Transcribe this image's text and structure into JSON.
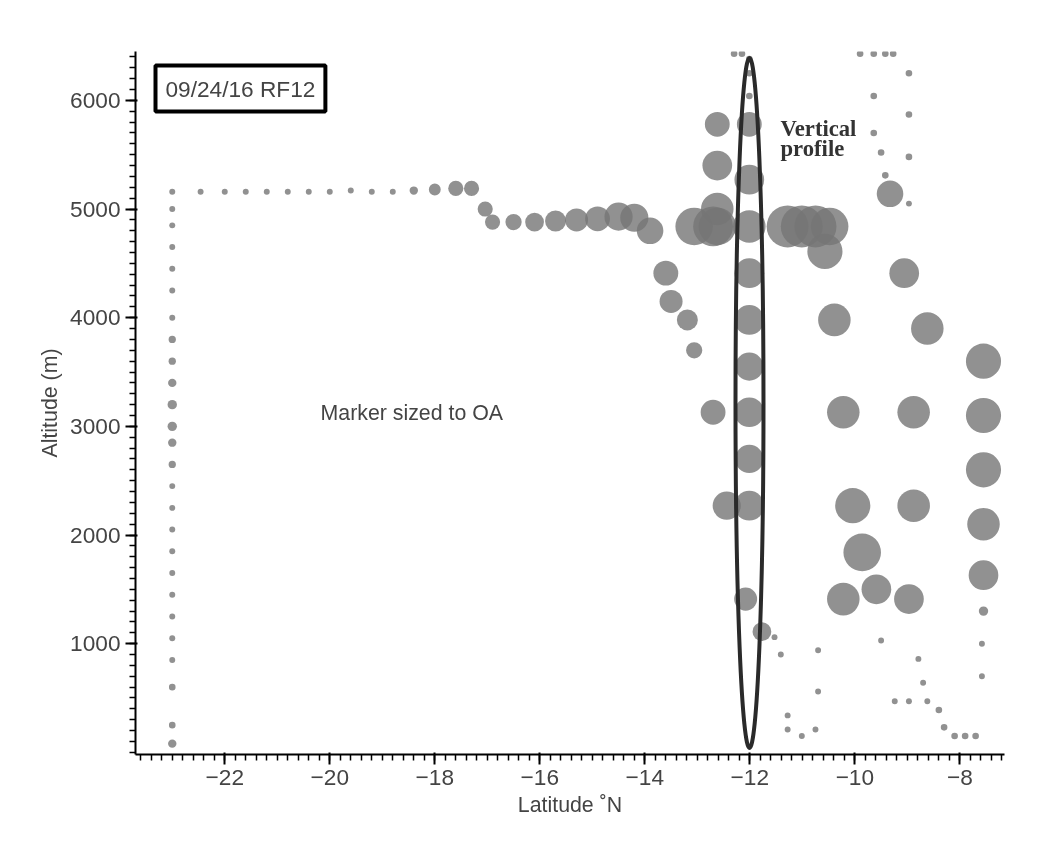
{
  "chart_data": {
    "type": "bubble",
    "title": "09/24/16 RF12",
    "xlabel": "Latitude ˚N",
    "ylabel": "Altitude (m)",
    "xlim": [
      -23.7,
      -7.15
    ],
    "ylim": [
      -20,
      6450
    ],
    "xticks": [
      -22,
      -20,
      -18,
      -16,
      -14,
      -12,
      -10,
      -8
    ],
    "yticks": [
      1000,
      2000,
      3000,
      4000,
      5000,
      6000
    ],
    "grid": false,
    "marker": "circle",
    "annotations": [
      "Marker sized to OA",
      "Vertical profile"
    ],
    "series": [
      {
        "color": "#757575",
        "x": [
          -23.0,
          -23.0,
          -23.0,
          -23.0,
          -23.0,
          -23.0,
          -23.0,
          -23.0,
          -23.0,
          -23.0,
          -23.0,
          -23.0,
          -23.0,
          -23.0,
          -23.0,
          -23.0,
          -23.0,
          -23.0,
          -23.0,
          -23.0,
          -23.0,
          -23.0,
          -23.0,
          -23.0,
          -23.0,
          -23.0,
          -22.46,
          -22.0,
          -21.6,
          -21.2,
          -20.8,
          -20.4,
          -20.0,
          -19.6,
          -19.2,
          -18.8,
          -18.4,
          -18.0,
          -17.6,
          -17.3,
          -17.04,
          -16.9,
          -16.5,
          -16.1,
          -15.7,
          -15.3,
          -14.9,
          -14.5,
          -14.2,
          -13.9,
          -13.6,
          -13.5,
          -13.19,
          -13.06,
          -12.7,
          -12.44,
          -12.62,
          -12.62,
          -12.62,
          -12.62,
          -12.3,
          -12.15,
          -12.01,
          -12.01,
          -12.01,
          -12.01,
          -12.01,
          -12.01,
          -12.01,
          -12.01,
          -12.01,
          -12.01,
          -12.01,
          -12.01,
          -12.08,
          -11.77,
          -11.53,
          -13.06,
          -12.7,
          -11.28,
          -11.01,
          -10.75,
          -10.48,
          -10.57,
          -10.39,
          -10.22,
          -10.04,
          -9.86,
          -10.22,
          -9.59,
          -9.9,
          -9.64,
          -9.42,
          -9.27,
          -9.64,
          -9.64,
          -9.5,
          -9.42,
          -8.97,
          -8.97,
          -8.97,
          -8.97,
          -9.33,
          -9.06,
          -8.62,
          -8.88,
          -8.88,
          -8.97,
          -9.5,
          -9.24,
          -8.97,
          -8.79,
          -8.7,
          -8.62,
          -8.4,
          -8.3,
          -8.1,
          -7.9,
          -7.7,
          -7.55,
          -7.55,
          -7.55,
          -7.55,
          -7.55,
          -7.55,
          -7.58,
          -7.58,
          -11.41,
          -11.28,
          -11.28,
          -11.01,
          -10.75,
          -10.7,
          -10.7
        ],
        "values": [
          80,
          250,
          600,
          850,
          1050,
          1250,
          1450,
          1650,
          1850,
          2050,
          2250,
          2450,
          2650,
          2850,
          3000,
          3200,
          3400,
          3600,
          3800,
          4000,
          4250,
          4450,
          4650,
          4850,
          5000,
          5160,
          5160,
          5160,
          5160,
          5160,
          5160,
          5160,
          5160,
          5170,
          5160,
          5160,
          5170,
          5180,
          5190,
          5190,
          5000,
          4880,
          4880,
          4880,
          4890,
          4900,
          4910,
          4930,
          4920,
          4800,
          4410,
          4150,
          3980,
          3700,
          3130,
          2270,
          5780,
          5400,
          5000,
          4840,
          6430,
          6430,
          6380,
          6250,
          6040,
          5780,
          5270,
          4840,
          4410,
          3980,
          3550,
          3130,
          2700,
          2270,
          1410,
          1110,
          1060,
          4840,
          4840,
          4840,
          4840,
          4840,
          4840,
          4610,
          3980,
          3130,
          2270,
          1840,
          1410,
          1500,
          6430,
          6430,
          6430,
          6430,
          6040,
          5700,
          5520,
          5310,
          6250,
          5870,
          5480,
          5050,
          5140,
          4410,
          3900,
          3130,
          2270,
          1410,
          1030,
          470,
          470,
          860,
          640,
          470,
          390,
          230,
          150,
          150,
          150,
          3600,
          3100,
          2600,
          2100,
          1630,
          1300,
          1000,
          700,
          900,
          340,
          210,
          150,
          210,
          940,
          560
        ],
        "sizes": [
          0.04,
          0.025,
          0.025,
          0.02,
          0.02,
          0.02,
          0.02,
          0.02,
          0.02,
          0.02,
          0.02,
          0.02,
          0.03,
          0.04,
          0.05,
          0.05,
          0.04,
          0.03,
          0.03,
          0.02,
          0.02,
          0.02,
          0.02,
          0.02,
          0.02,
          0.02,
          0.02,
          0.02,
          0.02,
          0.02,
          0.02,
          0.02,
          0.02,
          0.02,
          0.02,
          0.02,
          0.04,
          0.08,
          0.13,
          0.13,
          0.13,
          0.13,
          0.15,
          0.2,
          0.25,
          0.3,
          0.35,
          0.45,
          0.45,
          0.4,
          0.35,
          0.3,
          0.25,
          0.15,
          0.35,
          0.45,
          0.35,
          0.5,
          0.6,
          0.8,
          0.025,
          0.025,
          0.025,
          0.025,
          0.025,
          0.35,
          0.5,
          0.6,
          0.5,
          0.5,
          0.45,
          0.5,
          0.45,
          0.5,
          0.3,
          0.2,
          0.02,
          0.8,
          0.9,
          1.0,
          1.0,
          1.0,
          0.8,
          0.7,
          0.6,
          0.6,
          0.7,
          0.8,
          0.6,
          0.5,
          0.025,
          0.025,
          0.025,
          0.025,
          0.025,
          0.025,
          0.025,
          0.025,
          0.025,
          0.025,
          0.025,
          0.02,
          0.4,
          0.5,
          0.6,
          0.6,
          0.6,
          0.5,
          0.02,
          0.02,
          0.02,
          0.02,
          0.02,
          0.02,
          0.025,
          0.025,
          0.025,
          0.025,
          0.025,
          0.7,
          0.7,
          0.7,
          0.6,
          0.5,
          0.05,
          0.02,
          0.02,
          0.02,
          0.02,
          0.02,
          0.02,
          0.02,
          0.02,
          0.02
        ]
      }
    ]
  }
}
